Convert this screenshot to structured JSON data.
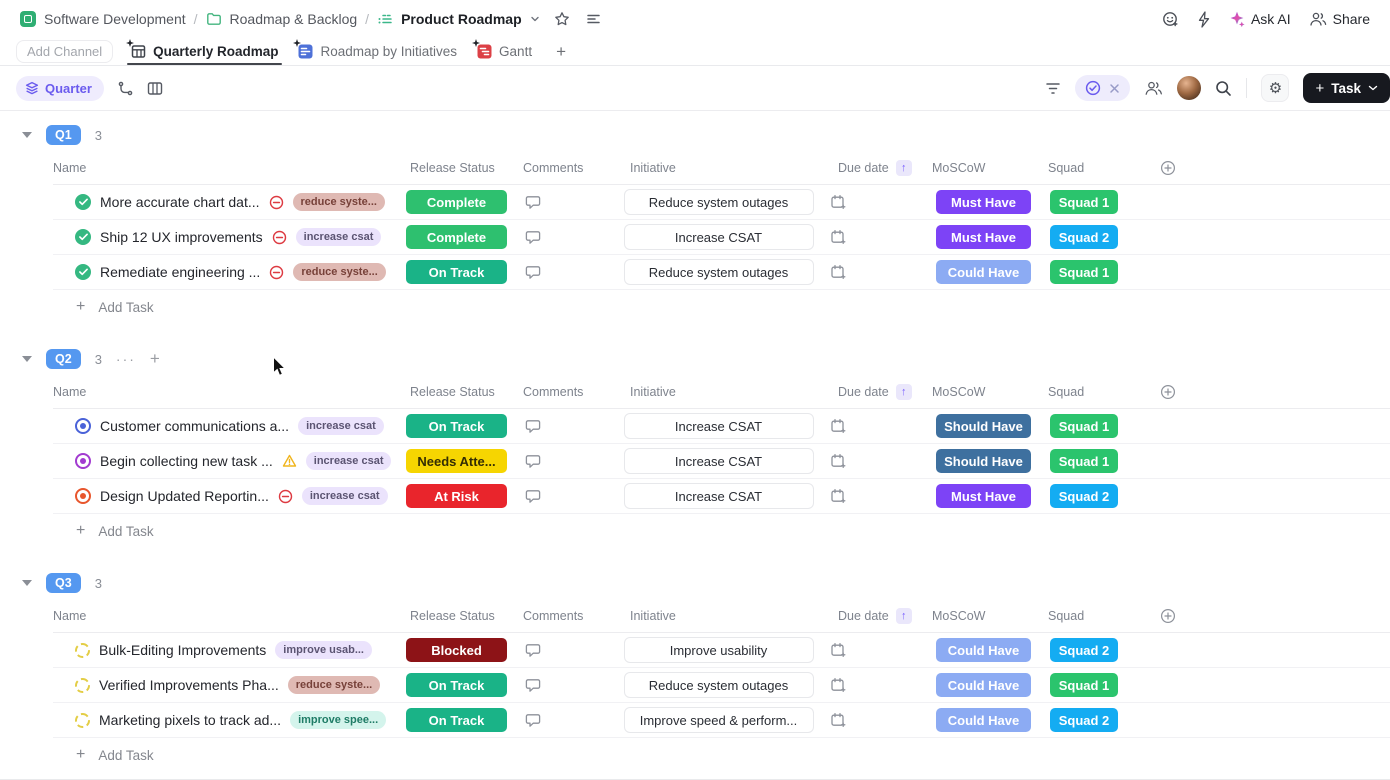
{
  "breadcrumb": {
    "space": "Software Development",
    "folder": "Roadmap & Backlog",
    "view": "Product Roadmap",
    "separator": "/"
  },
  "topbar": {
    "ask_ai": "Ask AI",
    "share": "Share"
  },
  "channel_bar": {
    "add_channel": "Add Channel",
    "tabs": [
      {
        "label": "Quarterly Roadmap",
        "active": true
      },
      {
        "label": "Roadmap by Initiatives",
        "active": false
      },
      {
        "label": "Gantt",
        "active": false
      }
    ],
    "add_tab": "+"
  },
  "toolbar": {
    "group_by": "Quarter",
    "task_button": "Task",
    "plus": "+"
  },
  "table": {
    "columns": [
      "Name",
      "Release Status",
      "Comments",
      "Initiative",
      "Due date",
      "MoSCoW",
      "Squad"
    ],
    "sorted_column": "Due date",
    "sort_direction": "asc",
    "sort_arrow": "↑"
  },
  "palette": {
    "badge": "#5598f0",
    "release": {
      "complete": {
        "bg": "#2ec06f",
        "fg": "#ffffff"
      },
      "ontrack": {
        "bg": "#1ab387",
        "fg": "#ffffff"
      },
      "needs": {
        "bg": "#f6d501",
        "fg": "#332d04"
      },
      "atrisk": {
        "bg": "#e9252c",
        "fg": "#ffffff"
      },
      "blocked": {
        "bg": "#8d1317",
        "fg": "#ffffff"
      }
    },
    "moscow": {
      "must": {
        "bg": "#7d43f6",
        "fg": "#ffffff"
      },
      "should": {
        "bg": "#3e709f",
        "fg": "#ffffff"
      },
      "could": {
        "bg": "#8cabf3",
        "fg": "#ffffff"
      }
    },
    "squad": {
      "s1": {
        "bg": "#2bc46d",
        "fg": "#ffffff"
      },
      "s2": {
        "bg": "#14acf2",
        "fg": "#ffffff"
      }
    },
    "tag": {
      "rose": {
        "bg": "#dfb9b3",
        "fg": "#774139"
      },
      "lavender": {
        "bg": "#ebe3fc",
        "fg": "#5b5472"
      },
      "teal": {
        "bg": "#d4f4ec",
        "fg": "#1f7c66"
      }
    },
    "status": {
      "complete": "#35b881",
      "blue": "#4a62d8",
      "purple": "#a23bd0",
      "orange": "#e8562d",
      "todo": "#e3cd45"
    }
  },
  "groups": [
    {
      "badge": "Q1",
      "count": "3",
      "show_actions": false,
      "menu": "···",
      "add": "+",
      "add_task": "Add Task",
      "rows": [
        {
          "status": "complete",
          "name": "More accurate chart dat...",
          "flag": "blocked",
          "tag": {
            "label": "reduce syste...",
            "theme": "rose"
          },
          "release": {
            "label": "Complete",
            "theme": "complete"
          },
          "initiative": "Reduce system outages",
          "moscow": {
            "label": "Must Have",
            "theme": "must"
          },
          "squad": {
            "label": "Squad 1",
            "theme": "s1"
          }
        },
        {
          "status": "complete",
          "name": "Ship 12 UX improvements",
          "flag": "blocked",
          "tag": {
            "label": "increase csat",
            "theme": "lavender"
          },
          "release": {
            "label": "Complete",
            "theme": "complete"
          },
          "initiative": "Increase CSAT",
          "moscow": {
            "label": "Must Have",
            "theme": "must"
          },
          "squad": {
            "label": "Squad 2",
            "theme": "s2"
          }
        },
        {
          "status": "complete",
          "name": "Remediate engineering ...",
          "flag": "blocked",
          "tag": {
            "label": "reduce syste...",
            "theme": "rose"
          },
          "release": {
            "label": "On Track",
            "theme": "ontrack"
          },
          "initiative": "Reduce system outages",
          "moscow": {
            "label": "Could Have",
            "theme": "could"
          },
          "squad": {
            "label": "Squad 1",
            "theme": "s1"
          }
        }
      ]
    },
    {
      "badge": "Q2",
      "count": "3",
      "show_actions": true,
      "menu": "···",
      "add": "+",
      "add_task": "Add Task",
      "rows": [
        {
          "status": "blue",
          "name": "Customer communications a...",
          "flag": "none",
          "tag": {
            "label": "increase csat",
            "theme": "lavender"
          },
          "release": {
            "label": "On Track",
            "theme": "ontrack"
          },
          "initiative": "Increase CSAT",
          "moscow": {
            "label": "Should Have",
            "theme": "should"
          },
          "squad": {
            "label": "Squad 1",
            "theme": "s1"
          }
        },
        {
          "status": "purple",
          "name": "Begin collecting new task ...",
          "flag": "warning",
          "tag": {
            "label": "increase csat",
            "theme": "lavender"
          },
          "release": {
            "label": "Needs Atte...",
            "theme": "needs"
          },
          "initiative": "Increase CSAT",
          "moscow": {
            "label": "Should Have",
            "theme": "should"
          },
          "squad": {
            "label": "Squad 1",
            "theme": "s1"
          }
        },
        {
          "status": "orange",
          "name": "Design Updated Reportin...",
          "flag": "blocked",
          "tag": {
            "label": "increase csat",
            "theme": "lavender"
          },
          "release": {
            "label": "At Risk",
            "theme": "atrisk"
          },
          "initiative": "Increase CSAT",
          "moscow": {
            "label": "Must Have",
            "theme": "must"
          },
          "squad": {
            "label": "Squad 2",
            "theme": "s2"
          }
        }
      ]
    },
    {
      "badge": "Q3",
      "count": "3",
      "show_actions": false,
      "menu": "···",
      "add": "+",
      "add_task": "Add Task",
      "rows": [
        {
          "status": "todo",
          "name": "Bulk-Editing Improvements",
          "flag": "none",
          "tag": {
            "label": "improve usab...",
            "theme": "lavender"
          },
          "release": {
            "label": "Blocked",
            "theme": "blocked"
          },
          "initiative": "Improve usability",
          "moscow": {
            "label": "Could Have",
            "theme": "could"
          },
          "squad": {
            "label": "Squad 2",
            "theme": "s2"
          }
        },
        {
          "status": "todo",
          "name": "Verified Improvements Pha...",
          "flag": "none",
          "tag": {
            "label": "reduce syste...",
            "theme": "rose"
          },
          "release": {
            "label": "On Track",
            "theme": "ontrack"
          },
          "initiative": "Reduce system outages",
          "moscow": {
            "label": "Could Have",
            "theme": "could"
          },
          "squad": {
            "label": "Squad 1",
            "theme": "s1"
          }
        },
        {
          "status": "todo",
          "name": "Marketing pixels to track ad...",
          "flag": "none",
          "tag": {
            "label": "improve spee...",
            "theme": "teal"
          },
          "release": {
            "label": "On Track",
            "theme": "ontrack"
          },
          "initiative": "Improve speed & perform...",
          "moscow": {
            "label": "Could Have",
            "theme": "could"
          },
          "squad": {
            "label": "Squad 2",
            "theme": "s2"
          }
        }
      ]
    }
  ]
}
